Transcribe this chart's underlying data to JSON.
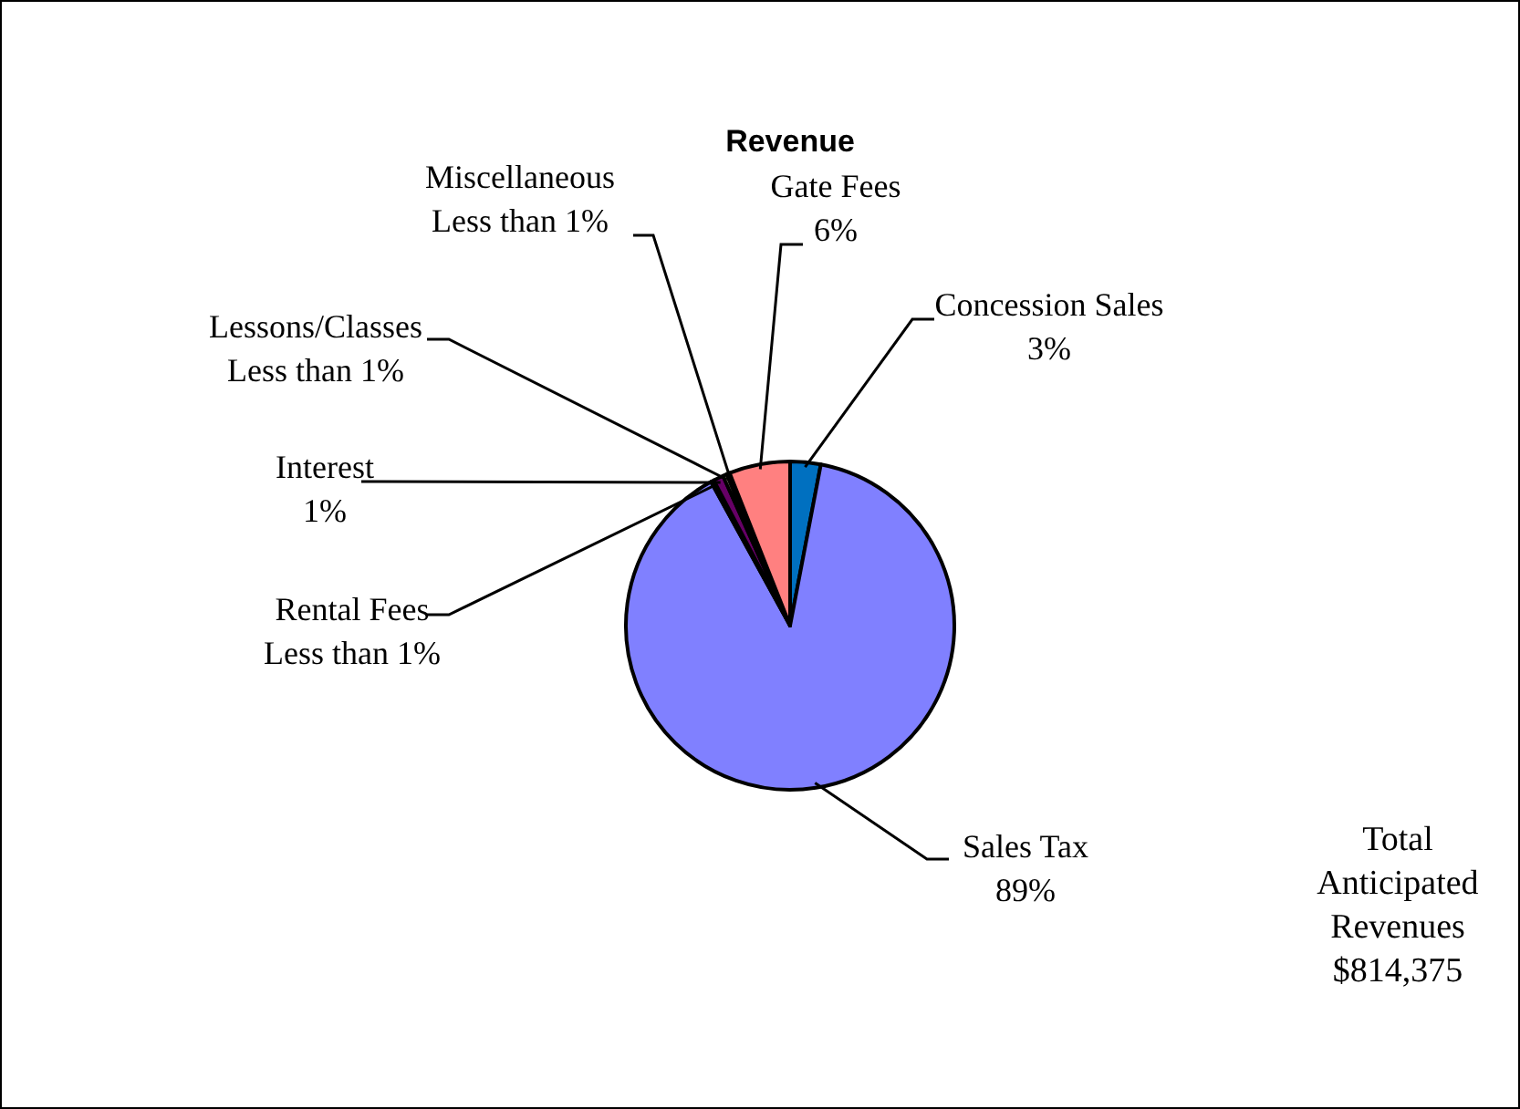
{
  "chart_data": {
    "type": "pie",
    "title": "Revenue",
    "categories": [
      "Concession Sales",
      "Sales Tax",
      "Rental Fees",
      "Interest",
      "Lessons/Classes",
      "Miscellaneous",
      "Gate Fees"
    ],
    "values": [
      3,
      89,
      0.3,
      1,
      0.4,
      0.3,
      6
    ],
    "colors": [
      "#0070c0",
      "#8080ff",
      "#993366",
      "#660066",
      "#ffffcc",
      "#ccffff",
      "#ff8080"
    ],
    "value_labels": [
      "3%",
      "89%",
      "Less than 1%",
      "1%",
      "Less than 1%",
      "Less than 1%",
      "6%"
    ],
    "annotations": [
      "Total Anticipated Revenues $814,375"
    ]
  }
}
